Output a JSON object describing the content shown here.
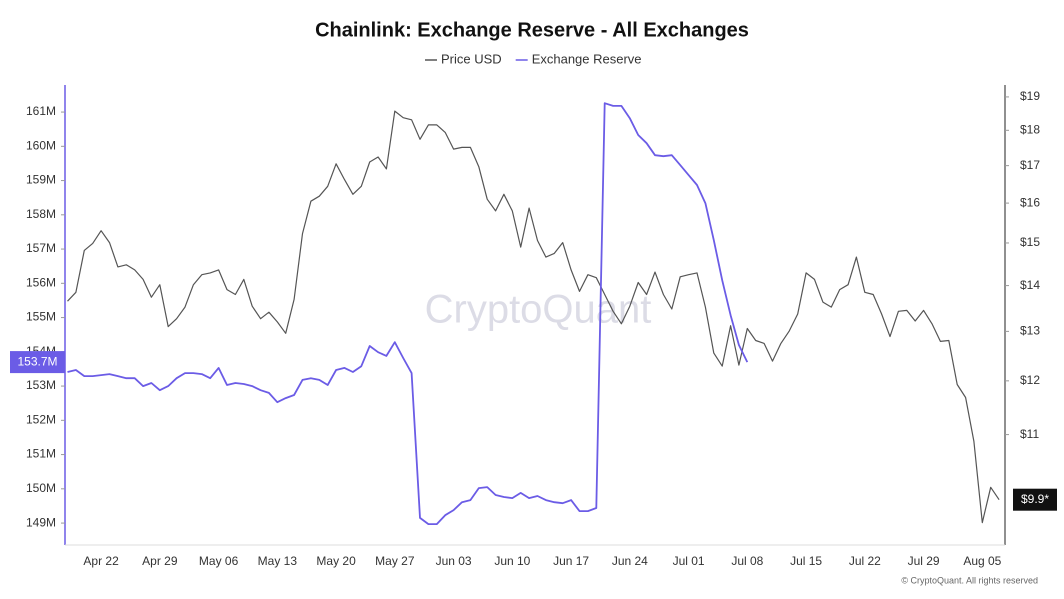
{
  "chart_data": {
    "type": "line",
    "title": "Chainlink: Exchange Reserve - All Exchanges",
    "watermark": "CryptoQuant",
    "footer": "© CryptoQuant. All rights reserved",
    "categories": [
      null,
      null,
      null,
      null,
      "Apr 22",
      null,
      null,
      null,
      null,
      null,
      null,
      "Apr 29",
      null,
      null,
      null,
      null,
      null,
      null,
      "May 06",
      null,
      null,
      null,
      null,
      null,
      null,
      "May 13",
      null,
      null,
      null,
      null,
      null,
      null,
      "May 20",
      null,
      null,
      null,
      null,
      null,
      null,
      "May 27",
      null,
      null,
      null,
      null,
      null,
      null,
      "Jun 03",
      null,
      null,
      null,
      null,
      null,
      null,
      "Jun 10",
      null,
      null,
      null,
      null,
      null,
      null,
      "Jun 17",
      null,
      null,
      null,
      null,
      null,
      null,
      "Jun 24",
      null,
      null,
      null,
      null,
      null,
      null,
      "Jul 01",
      null,
      null,
      null,
      null,
      null,
      null,
      "Jul 08",
      null,
      null,
      null,
      null,
      null,
      null,
      "Jul 15",
      null,
      null,
      null,
      null,
      null,
      null,
      "Jul 22",
      null,
      null,
      null,
      null,
      null,
      null,
      "Jul 29",
      null,
      null,
      null,
      null,
      null,
      null,
      "Aug 05",
      null,
      null
    ],
    "series": [
      {
        "name": "Price USD",
        "color": "#555555",
        "axis": "y2",
        "values": [
          13.65,
          13.85,
          14.82,
          14.99,
          15.3,
          15.01,
          14.43,
          14.48,
          14.36,
          14.14,
          13.74,
          14.02,
          13.1,
          13.27,
          13.52,
          14.02,
          14.25,
          14.29,
          14.36,
          13.91,
          13.8,
          14.14,
          13.54,
          13.27,
          13.41,
          13.2,
          12.96,
          13.69,
          15.23,
          16.05,
          16.18,
          16.44,
          17.05,
          16.62,
          16.23,
          16.44,
          17.1,
          17.24,
          16.91,
          18.57,
          18.37,
          18.31,
          17.74,
          18.16,
          18.16,
          17.94,
          17.46,
          17.51,
          17.51,
          16.97,
          16.1,
          15.8,
          16.23,
          15.8,
          14.9,
          15.87,
          15.06,
          14.66,
          14.75,
          15.01,
          14.36,
          13.87,
          14.25,
          14.18,
          13.8,
          13.43,
          13.16,
          13.54,
          14.07,
          13.8,
          14.31,
          13.8,
          13.48,
          14.2,
          14.25,
          14.29,
          13.52,
          12.55,
          12.29,
          13.12,
          12.31,
          13.06,
          12.81,
          12.75,
          12.39,
          12.75,
          13.01,
          13.37,
          14.29,
          14.14,
          13.63,
          13.52,
          13.91,
          14.02,
          14.66,
          13.85,
          13.8,
          13.37,
          12.89,
          13.43,
          13.45,
          13.22,
          13.45,
          13.16,
          12.79,
          12.81,
          11.93,
          11.68,
          10.88,
          9.54,
          10.1,
          9.9
        ]
      },
      {
        "name": "Exchange Reserve",
        "color": "#6b5ce6",
        "axis": "y",
        "values": [
          153.41,
          153.47,
          153.29,
          153.29,
          153.32,
          153.35,
          153.29,
          153.23,
          153.23,
          153.0,
          153.09,
          152.88,
          153.0,
          153.23,
          153.38,
          153.38,
          153.35,
          153.23,
          153.53,
          153.03,
          153.09,
          153.06,
          153.0,
          152.88,
          152.8,
          152.53,
          152.65,
          152.74,
          153.18,
          153.23,
          153.18,
          153.03,
          153.47,
          153.53,
          153.41,
          153.58,
          154.17,
          153.99,
          153.88,
          154.28,
          153.82,
          153.38,
          149.15,
          148.97,
          148.97,
          149.23,
          149.38,
          149.61,
          149.67,
          150.02,
          150.05,
          149.82,
          149.76,
          149.73,
          149.88,
          149.73,
          149.79,
          149.67,
          149.61,
          149.58,
          149.67,
          149.35,
          149.35,
          149.44,
          161.26,
          161.18,
          161.18,
          160.82,
          160.33,
          160.09,
          159.74,
          159.71,
          159.74,
          159.45,
          159.16,
          158.87,
          158.34,
          157.26,
          156.09,
          155.07,
          154.2,
          153.7,
          null,
          null,
          null,
          null,
          null,
          null,
          null,
          null,
          null,
          null,
          null,
          null,
          null,
          null,
          null,
          null,
          null,
          null,
          null,
          null,
          null,
          null,
          null,
          null,
          null,
          null,
          null,
          null,
          null,
          null
        ]
      }
    ],
    "ylim": [
      148.36,
      161.79
    ],
    "yticks": [
      {
        "value": 149,
        "label": "149M"
      },
      {
        "value": 150,
        "label": "150M"
      },
      {
        "value": 151,
        "label": "151M"
      },
      {
        "value": 152,
        "label": "152M"
      },
      {
        "value": 153,
        "label": "153M"
      },
      {
        "value": 154,
        "label": "154M"
      },
      {
        "value": 155,
        "label": "155M"
      },
      {
        "value": 156,
        "label": "156M"
      },
      {
        "value": 157,
        "label": "157M"
      },
      {
        "value": 158,
        "label": "158M"
      },
      {
        "value": 159,
        "label": "159M"
      },
      {
        "value": 160,
        "label": "160M"
      },
      {
        "value": 161,
        "label": "161M"
      }
    ],
    "y2lim": [
      9.2,
      19.37
    ],
    "y2log": true,
    "y2ticks": [
      {
        "value": 11,
        "label": "$11"
      },
      {
        "value": 12,
        "label": "$12"
      },
      {
        "value": 13,
        "label": "$13"
      },
      {
        "value": 14,
        "label": "$14"
      },
      {
        "value": 15,
        "label": "$15"
      },
      {
        "value": 16,
        "label": "$16"
      },
      {
        "value": 17,
        "label": "$17"
      },
      {
        "value": 18,
        "label": "$18"
      },
      {
        "value": 19,
        "label": "$19"
      }
    ],
    "grid": false,
    "legend": "top",
    "annotations": [
      {
        "text": "153.7M",
        "value": 153.7,
        "axis": "y"
      },
      {
        "text": "$9.9*",
        "value": 9.9,
        "axis": "y2"
      }
    ]
  }
}
